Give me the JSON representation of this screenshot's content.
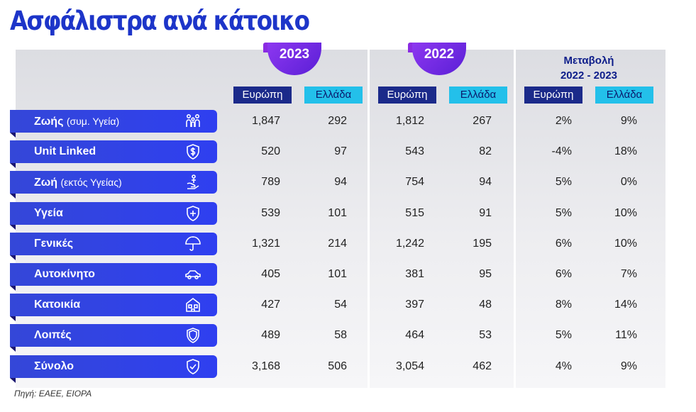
{
  "title": "Ασφάλιστρα ανά κάτοικο",
  "source": "Πηγή: ΕΑΕΕ, EIOPA",
  "years": [
    "2023",
    "2022"
  ],
  "change_label_1": "Μεταβολή",
  "change_label_2": "2022 - 2023",
  "col_eu": "Ευρώπη",
  "col_gr": "Ελλάδα",
  "colors": {
    "accent": "#1d35c9",
    "eu_header": "#1b2a8a",
    "gr_header": "#23c0ea",
    "badge": "#7a2ee8"
  },
  "rows": [
    {
      "label": "Ζωής",
      "sub": "(συμ. Υγεία)",
      "icon": "family-icon",
      "eu2023": "1,847",
      "gr2023": "292",
      "eu2022": "1,812",
      "gr2022": "267",
      "eu_chg": "2%",
      "gr_chg": "9%"
    },
    {
      "label": "Unit Linked",
      "sub": "",
      "icon": "shield-dollar-icon",
      "eu2023": "520",
      "gr2023": "97",
      "eu2022": "543",
      "gr2022": "82",
      "eu_chg": "-4%",
      "gr_chg": "18%"
    },
    {
      "label": "Ζωή",
      "sub": "(εκτός Υγείας)",
      "icon": "hand-person-icon",
      "eu2023": "789",
      "gr2023": "94",
      "eu2022": "754",
      "gr2022": "94",
      "eu_chg": "5%",
      "gr_chg": "0%"
    },
    {
      "label": "Υγεία",
      "sub": "",
      "icon": "shield-plus-icon",
      "eu2023": "539",
      "gr2023": "101",
      "eu2022": "515",
      "gr2022": "91",
      "eu_chg": "5%",
      "gr_chg": "10%"
    },
    {
      "label": "Γενικές",
      "sub": "",
      "icon": "umbrella-icon",
      "eu2023": "1,321",
      "gr2023": "214",
      "eu2022": "1,242",
      "gr2022": "195",
      "eu_chg": "6%",
      "gr_chg": "10%"
    },
    {
      "label": "Αυτοκίνητο",
      "sub": "",
      "icon": "car-icon",
      "eu2023": "405",
      "gr2023": "101",
      "eu2022": "381",
      "gr2022": "95",
      "eu_chg": "6%",
      "gr_chg": "7%"
    },
    {
      "label": "Κατοικία",
      "sub": "",
      "icon": "house-icon",
      "eu2023": "427",
      "gr2023": "54",
      "eu2022": "397",
      "gr2022": "48",
      "eu_chg": "8%",
      "gr_chg": "14%"
    },
    {
      "label": "Λοιπές",
      "sub": "",
      "icon": "shield-icon",
      "eu2023": "489",
      "gr2023": "58",
      "eu2022": "464",
      "gr2022": "53",
      "eu_chg": "5%",
      "gr_chg": "11%"
    },
    {
      "label": "Σύνολο",
      "sub": "",
      "icon": "shield-check-icon",
      "eu2023": "3,168",
      "gr2023": "506",
      "eu2022": "3,054",
      "gr2022": "462",
      "eu_chg": "4%",
      "gr_chg": "9%"
    }
  ]
}
